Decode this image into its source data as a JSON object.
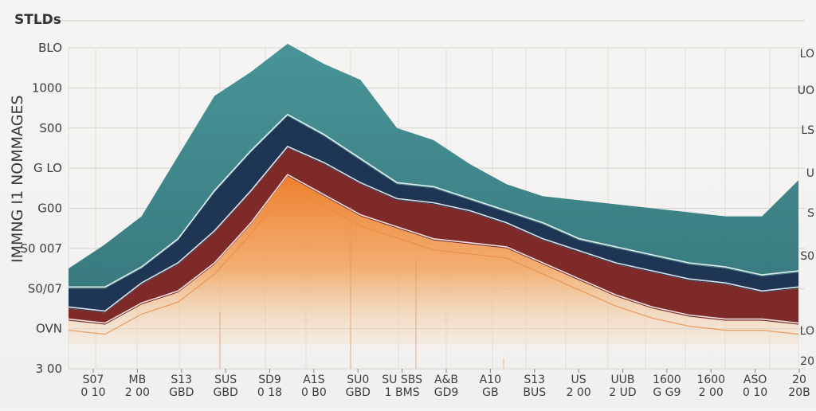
{
  "chart_data": {
    "type": "area",
    "title": "STLDs",
    "ylabel": "IMMNG I1 NOMMAGES",
    "xlabel": "",
    "ylim": [
      0,
      8
    ],
    "y_ticks": [
      "3 00",
      "OVN",
      "S0/07",
      "S0 007",
      "G00",
      "G LO",
      "S00",
      "1000",
      "BLO"
    ],
    "right_ticks": [
      "LO",
      "UO",
      "LS",
      "U",
      "S",
      "S0",
      "LO",
      "20"
    ],
    "categories": [
      "S07",
      "MB",
      "S13",
      "SUS",
      "SD9",
      "A1S",
      "SU0",
      "SU SBS",
      "A&B",
      "A10",
      "S13",
      "US",
      "UUB",
      "1600",
      "1600",
      "ASO",
      "20"
    ],
    "categories_row2": [
      "0 10",
      "2 00",
      "GBD",
      "GBD",
      "0 18",
      "0 B0",
      "GBD",
      "1 BMS",
      "GD9",
      "GB",
      "BUS",
      "2 00",
      "2 UD",
      "G G9",
      "2 00",
      "0 10",
      "20B"
    ],
    "x": [
      0,
      1,
      2,
      3,
      4,
      5,
      6,
      7,
      8,
      9,
      10,
      11,
      12,
      13,
      14,
      15,
      16,
      17,
      18,
      19,
      20
    ],
    "series": [
      {
        "name": "Teal",
        "color": "#3f8f93",
        "values": [
          2.5,
          3.1,
          3.8,
          5.3,
          6.8,
          7.4,
          8.1,
          7.6,
          7.2,
          6.0,
          5.7,
          5.1,
          4.6,
          4.3,
          4.2,
          4.1,
          4.0,
          3.9,
          3.8,
          3.8,
          4.7
        ]
      },
      {
        "name": "Navy",
        "color": "#1f3554",
        "values": [
          2.0,
          2.0,
          2.5,
          3.2,
          4.4,
          5.4,
          6.3,
          5.8,
          5.2,
          4.6,
          4.5,
          4.2,
          3.9,
          3.6,
          3.2,
          3.0,
          2.8,
          2.6,
          2.5,
          2.3,
          2.4
        ]
      },
      {
        "name": "Maroon",
        "color": "#7e2a28",
        "values": [
          1.5,
          1.4,
          2.1,
          2.6,
          3.4,
          4.4,
          5.5,
          5.1,
          4.6,
          4.2,
          4.1,
          3.9,
          3.6,
          3.2,
          2.9,
          2.6,
          2.4,
          2.2,
          2.1,
          1.9,
          2.0
        ]
      },
      {
        "name": "Orange",
        "color": "#ef8a3c",
        "values": [
          1.2,
          1.1,
          1.6,
          1.9,
          2.6,
          3.6,
          4.8,
          4.3,
          3.8,
          3.5,
          3.2,
          3.1,
          3.0,
          2.6,
          2.2,
          1.8,
          1.5,
          1.3,
          1.2,
          1.2,
          1.1
        ]
      }
    ],
    "grid": true,
    "legend": "none"
  }
}
